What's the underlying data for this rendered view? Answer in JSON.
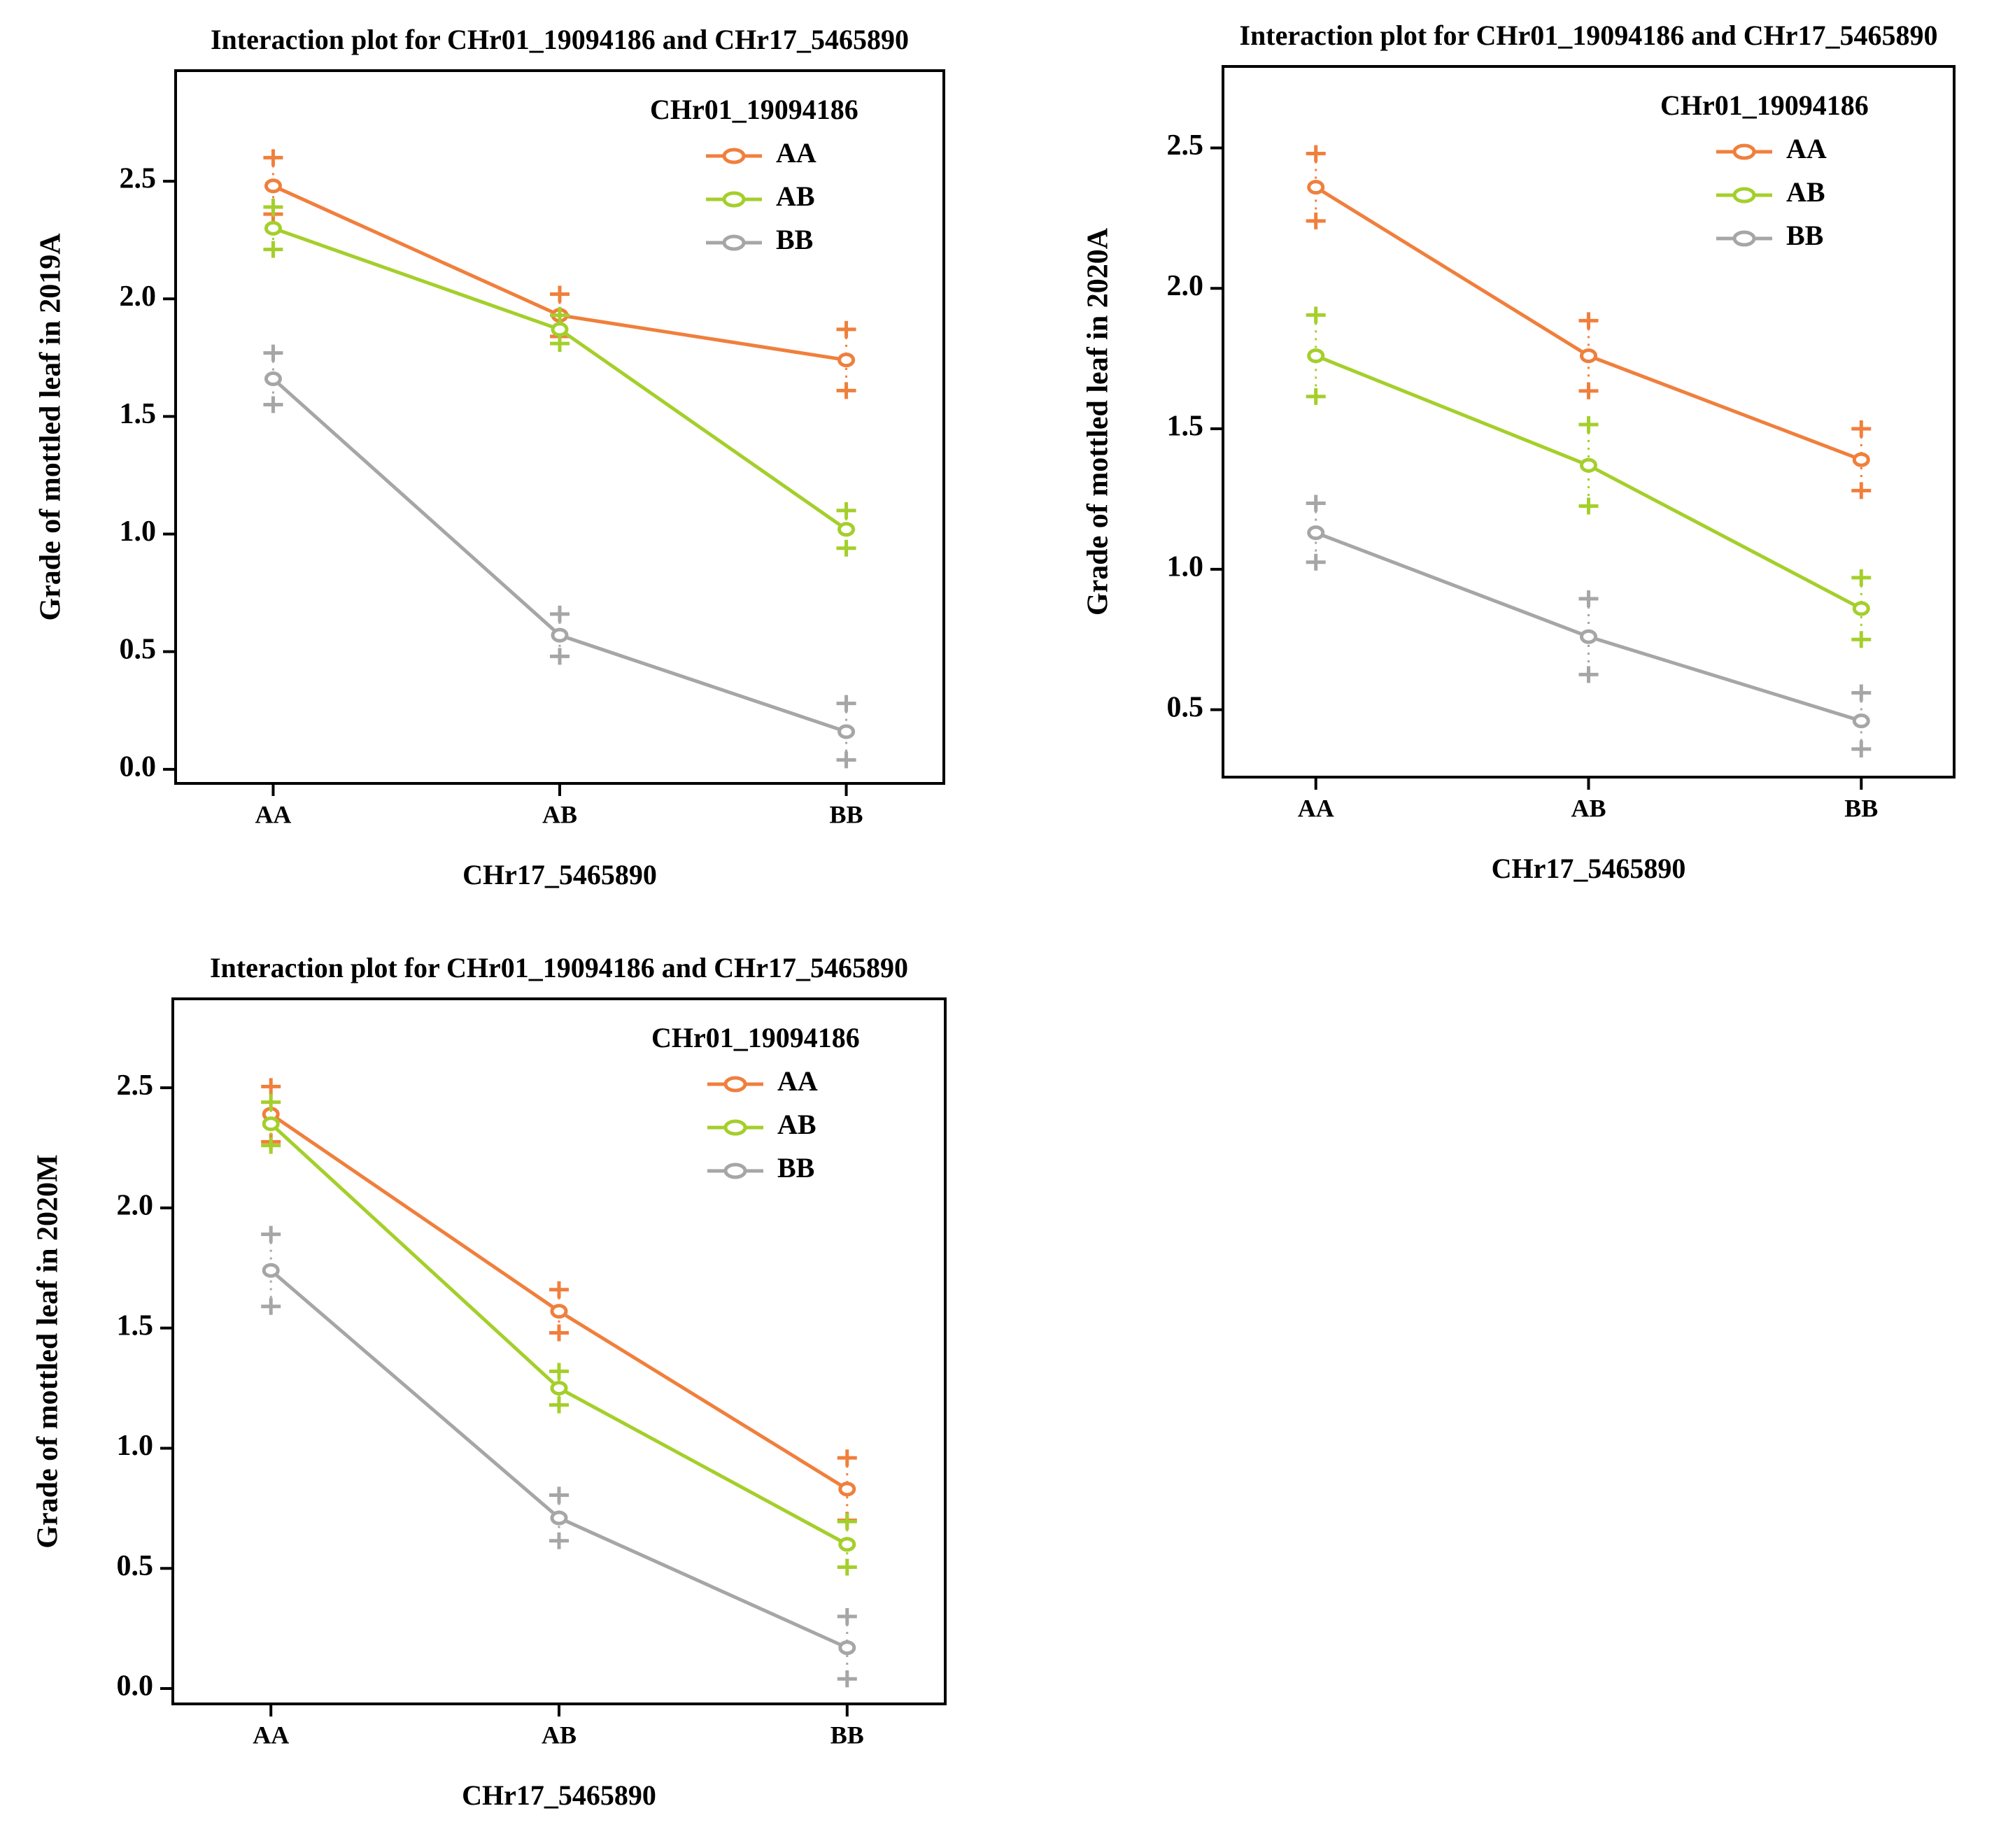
{
  "chart_data": [
    {
      "type": "line",
      "title": "Interaction plot for CHr01_19094186 and CHr17_5465890",
      "x_label": "CHr17_5465890",
      "y_label": "Grade of mottled leaf in 2019A",
      "legend_title": "CHr01_19094186",
      "legend": "top-right",
      "categories": [
        "AA",
        "AB",
        "BB"
      ],
      "series": [
        {
          "name": "AA",
          "color": "#f07f3c",
          "values": [
            2.48,
            1.93,
            1.74
          ],
          "errors": [
            0.12,
            0.09,
            0.13
          ]
        },
        {
          "name": "AB",
          "color": "#a4cf2b",
          "values": [
            2.3,
            1.87,
            1.02
          ],
          "errors": [
            0.09,
            0.06,
            0.08
          ]
        },
        {
          "name": "BB",
          "color": "#a6a6a6",
          "values": [
            1.66,
            0.57,
            0.16
          ],
          "errors": [
            0.11,
            0.09,
            0.12
          ]
        }
      ],
      "ylim": [
        -0.06,
        2.97
      ],
      "yticks": [
        {
          "value": 0,
          "label": "0.0"
        },
        0.5,
        {
          "value": 1,
          "label": "1.0"
        },
        1.5,
        {
          "value": 2,
          "label": "2.0"
        },
        2.5
      ]
    },
    {
      "type": "line",
      "title": "Interaction plot for CHr01_19094186 and CHr17_5465890",
      "x_label": "CHr17_5465890",
      "y_label": "Grade of mottled leaf in 2020A",
      "legend_title": "CHr01_19094186",
      "legend": "top-right",
      "categories": [
        "AA",
        "AB",
        "BB"
      ],
      "series": [
        {
          "name": "AA",
          "color": "#f07f3c",
          "values": [
            2.36,
            1.76,
            1.39
          ],
          "errors": [
            0.12,
            0.125,
            0.11
          ]
        },
        {
          "name": "AB",
          "color": "#a4cf2b",
          "values": [
            1.76,
            1.37,
            0.86
          ],
          "errors": [
            0.145,
            0.145,
            0.11
          ]
        },
        {
          "name": "BB",
          "color": "#a6a6a6",
          "values": [
            1.13,
            0.76,
            0.46
          ],
          "errors": [
            0.105,
            0.135,
            0.1
          ]
        }
      ],
      "ylim": [
        0.26,
        2.79
      ],
      "yticks": [
        0.5,
        {
          "value": 1,
          "label": "1.0"
        },
        1.5,
        {
          "value": 2,
          "label": "2.0"
        },
        2.5
      ]
    },
    {
      "type": "line",
      "title": "Interaction plot for CHr01_19094186 and CHr17_5465890",
      "x_label": "CHr17_5465890",
      "y_label": "Grade of mottled leaf in 2020M",
      "legend_title": "CHr01_19094186",
      "legend": "top-right",
      "categories": [
        "AA",
        "AB",
        "BB"
      ],
      "series": [
        {
          "name": "AA",
          "color": "#f07f3c",
          "values": [
            2.39,
            1.57,
            0.83
          ],
          "errors": [
            0.115,
            0.09,
            0.13
          ]
        },
        {
          "name": "AB",
          "color": "#a4cf2b",
          "values": [
            2.35,
            1.25,
            0.6
          ],
          "errors": [
            0.09,
            0.07,
            0.095
          ]
        },
        {
          "name": "BB",
          "color": "#a6a6a6",
          "values": [
            1.74,
            0.71,
            0.17
          ],
          "errors": [
            0.15,
            0.095,
            0.13
          ]
        }
      ],
      "ylim": [
        -0.064,
        2.87
      ],
      "yticks": [
        {
          "value": 0,
          "label": "0.0"
        },
        0.5,
        {
          "value": 1,
          "label": "1.0"
        },
        1.5,
        {
          "value": 2,
          "label": "2.0"
        },
        2.5
      ]
    }
  ]
}
